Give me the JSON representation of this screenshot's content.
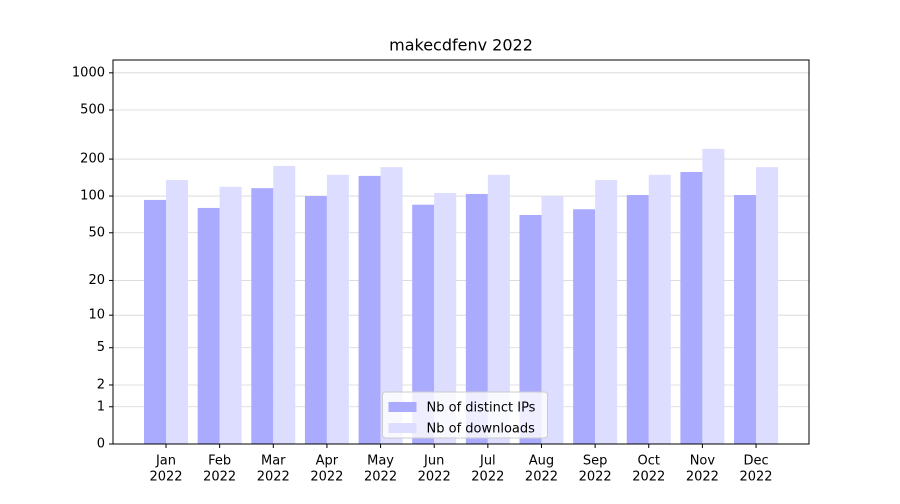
{
  "chart_data": {
    "type": "bar",
    "title": "makecdfenv 2022",
    "categories": [
      [
        "Jan",
        "2022"
      ],
      [
        "Feb",
        "2022"
      ],
      [
        "Mar",
        "2022"
      ],
      [
        "Apr",
        "2022"
      ],
      [
        "May",
        "2022"
      ],
      [
        "Jun",
        "2022"
      ],
      [
        "Jul",
        "2022"
      ],
      [
        "Aug",
        "2022"
      ],
      [
        "Sep",
        "2022"
      ],
      [
        "Oct",
        "2022"
      ],
      [
        "Nov",
        "2022"
      ],
      [
        "Dec",
        "2022"
      ]
    ],
    "series": [
      {
        "name": "Nb of distinct IPs",
        "color": "#aaaaff",
        "values": [
          93,
          80,
          116,
          100,
          146,
          85,
          104,
          70,
          78,
          102,
          157,
          102
        ]
      },
      {
        "name": "Nb of downloads",
        "color": "#ddddff",
        "values": [
          135,
          119,
          176,
          149,
          172,
          106,
          149,
          100,
          135,
          149,
          242,
          172
        ]
      }
    ],
    "yscale": "log1p",
    "ylim": [
      0,
      1270
    ],
    "yticks": [
      0,
      1,
      2,
      5,
      10,
      20,
      50,
      100,
      200,
      500,
      1000
    ],
    "grid": true,
    "legend": "lower center"
  }
}
